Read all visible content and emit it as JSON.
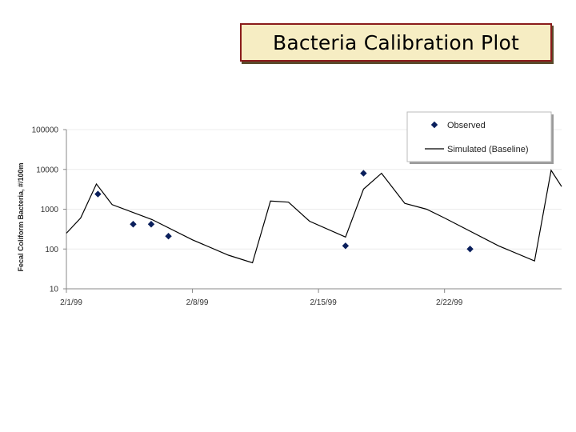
{
  "slide": {
    "title": "Bacteria Calibration Plot"
  },
  "chart_data": {
    "type": "line",
    "title": "",
    "ylabel": "Fecal Coliform Bacteria, #/100m",
    "xlabel": "",
    "yscale": "log",
    "ylim": [
      10,
      100000
    ],
    "y_ticks": [
      10,
      100,
      1000,
      10000,
      100000
    ],
    "y_tick_labels": [
      "10",
      "100",
      "1000",
      "10000",
      "100000"
    ],
    "xlim": [
      "1999-02-01",
      "1999-02-28"
    ],
    "x_ticks": [
      "1999-02-01",
      "1999-02-08",
      "1999-02-15",
      "1999-02-22"
    ],
    "x_tick_labels": [
      "2/1/99",
      "2/8/99",
      "2/15/99",
      "2/22/99"
    ],
    "legend_position": "top-right",
    "grid": false,
    "series": [
      {
        "name": "Observed",
        "kind": "scatter",
        "color": "#0a1f5c",
        "points": [
          {
            "x": "1999-02-02T18:00",
            "y": 2400
          },
          {
            "x": "1999-02-04T17:00",
            "y": 420
          },
          {
            "x": "1999-02-05T17:00",
            "y": 420
          },
          {
            "x": "1999-02-06T16:00",
            "y": 210
          },
          {
            "x": "1999-02-16T12:00",
            "y": 120
          },
          {
            "x": "1999-02-17T12:00",
            "y": 8000
          },
          {
            "x": "1999-02-23T10:00",
            "y": 100
          }
        ]
      },
      {
        "name": "Simulated (Baseline)",
        "kind": "line",
        "color": "#000000",
        "points": [
          {
            "x": "1999-02-01T00:00",
            "y": 250
          },
          {
            "x": "1999-02-01T19:00",
            "y": 600
          },
          {
            "x": "1999-02-02T16:00",
            "y": 4300
          },
          {
            "x": "1999-02-03T13:00",
            "y": 1300
          },
          {
            "x": "1999-02-05T18:00",
            "y": 550
          },
          {
            "x": "1999-02-08T00:00",
            "y": 170
          },
          {
            "x": "1999-02-10T00:00",
            "y": 70
          },
          {
            "x": "1999-02-11T08:00",
            "y": 45
          },
          {
            "x": "1999-02-12T08:00",
            "y": 1600
          },
          {
            "x": "1999-02-13T08:00",
            "y": 1500
          },
          {
            "x": "1999-02-14T12:00",
            "y": 500
          },
          {
            "x": "1999-02-16T12:00",
            "y": 200
          },
          {
            "x": "1999-02-17T12:00",
            "y": 3200
          },
          {
            "x": "1999-02-18T12:00",
            "y": 8000
          },
          {
            "x": "1999-02-19T19:00",
            "y": 1400
          },
          {
            "x": "1999-02-21T00:00",
            "y": 1000
          },
          {
            "x": "1999-02-22T00:00",
            "y": 600
          },
          {
            "x": "1999-02-25T00:00",
            "y": 120
          },
          {
            "x": "1999-02-27T00:00",
            "y": 50
          },
          {
            "x": "1999-02-27T22:00",
            "y": 9500
          },
          {
            "x": "1999-02-28T12:00",
            "y": 3700
          }
        ]
      }
    ]
  }
}
